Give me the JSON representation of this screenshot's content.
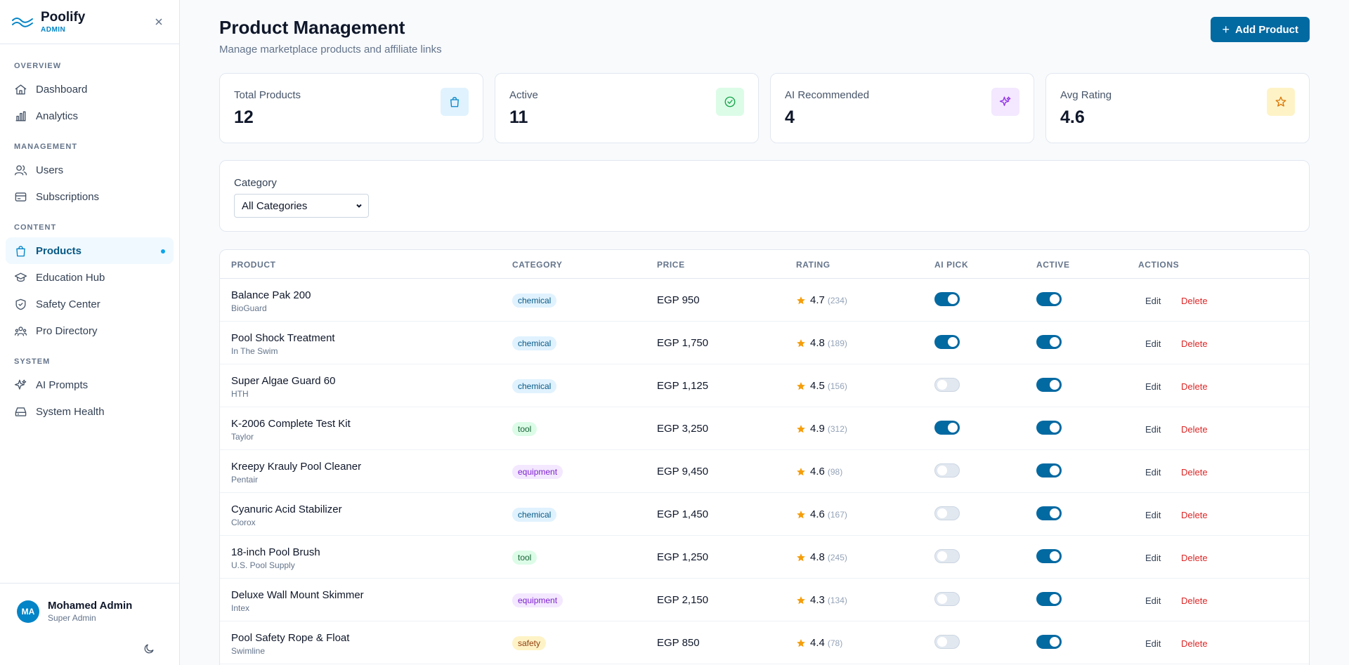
{
  "brand": {
    "name": "Poolify",
    "sub": "ADMIN"
  },
  "sidebar": {
    "sections": [
      {
        "title": "OVERVIEW",
        "items": [
          {
            "label": "Dashboard",
            "icon": "home-icon"
          },
          {
            "label": "Analytics",
            "icon": "bar-chart-icon"
          }
        ]
      },
      {
        "title": "MANAGEMENT",
        "items": [
          {
            "label": "Users",
            "icon": "users-icon"
          },
          {
            "label": "Subscriptions",
            "icon": "credit-card-icon"
          }
        ]
      },
      {
        "title": "CONTENT",
        "items": [
          {
            "label": "Products",
            "icon": "shopping-bag-icon",
            "active": true
          },
          {
            "label": "Education Hub",
            "icon": "graduation-cap-icon"
          },
          {
            "label": "Safety Center",
            "icon": "shield-check-icon"
          },
          {
            "label": "Pro Directory",
            "icon": "user-group-icon"
          }
        ]
      },
      {
        "title": "SYSTEM",
        "items": [
          {
            "label": "AI Prompts",
            "icon": "sparkles-icon"
          },
          {
            "label": "System Health",
            "icon": "hard-drive-icon"
          }
        ]
      }
    ]
  },
  "user": {
    "initials": "MA",
    "name": "Mohamed Admin",
    "role": "Super Admin"
  },
  "header": {
    "title": "Product Management",
    "subtitle": "Manage marketplace products and affiliate links",
    "add_label": "Add Product"
  },
  "stats": [
    {
      "label": "Total Products",
      "value": "12",
      "icon": "shopping-bag-icon",
      "color": "#0284c7",
      "bg": "#e0f2fe"
    },
    {
      "label": "Active",
      "value": "11",
      "icon": "check-circle-icon",
      "color": "#16a34a",
      "bg": "#dcfce7"
    },
    {
      "label": "AI Recommended",
      "value": "4",
      "icon": "sparkles-icon",
      "color": "#9333ea",
      "bg": "#f3e8ff"
    },
    {
      "label": "Avg Rating",
      "value": "4.6",
      "icon": "star-icon",
      "color": "#d97706",
      "bg": "#fef3c7"
    }
  ],
  "filter": {
    "label": "Category",
    "selected": "All Categories"
  },
  "table": {
    "headers": [
      "PRODUCT",
      "CATEGORY",
      "PRICE",
      "RATING",
      "AI PICK",
      "ACTIVE",
      "ACTIONS"
    ],
    "edit_label": "Edit",
    "delete_label": "Delete",
    "rows": [
      {
        "name": "Balance Pak 200",
        "brand": "BioGuard",
        "category": "chemical",
        "price": "EGP 950",
        "rating": "4.7",
        "count": "(234)",
        "ai": true,
        "active": true
      },
      {
        "name": "Pool Shock Treatment",
        "brand": "In The Swim",
        "category": "chemical",
        "price": "EGP 1,750",
        "rating": "4.8",
        "count": "(189)",
        "ai": true,
        "active": true
      },
      {
        "name": "Super Algae Guard 60",
        "brand": "HTH",
        "category": "chemical",
        "price": "EGP 1,125",
        "rating": "4.5",
        "count": "(156)",
        "ai": false,
        "active": true
      },
      {
        "name": "K-2006 Complete Test Kit",
        "brand": "Taylor",
        "category": "tool",
        "price": "EGP 3,250",
        "rating": "4.9",
        "count": "(312)",
        "ai": true,
        "active": true
      },
      {
        "name": "Kreepy Krauly Pool Cleaner",
        "brand": "Pentair",
        "category": "equipment",
        "price": "EGP 9,450",
        "rating": "4.6",
        "count": "(98)",
        "ai": false,
        "active": true
      },
      {
        "name": "Cyanuric Acid Stabilizer",
        "brand": "Clorox",
        "category": "chemical",
        "price": "EGP 1,450",
        "rating": "4.6",
        "count": "(167)",
        "ai": false,
        "active": true
      },
      {
        "name": "18-inch Pool Brush",
        "brand": "U.S. Pool Supply",
        "category": "tool",
        "price": "EGP 1,250",
        "rating": "4.8",
        "count": "(245)",
        "ai": false,
        "active": true
      },
      {
        "name": "Deluxe Wall Mount Skimmer",
        "brand": "Intex",
        "category": "equipment",
        "price": "EGP 2,150",
        "rating": "4.3",
        "count": "(134)",
        "ai": false,
        "active": true
      },
      {
        "name": "Pool Safety Rope & Float",
        "brand": "Swimline",
        "category": "safety",
        "price": "EGP 850",
        "rating": "4.4",
        "count": "(78)",
        "ai": false,
        "active": true
      }
    ]
  }
}
